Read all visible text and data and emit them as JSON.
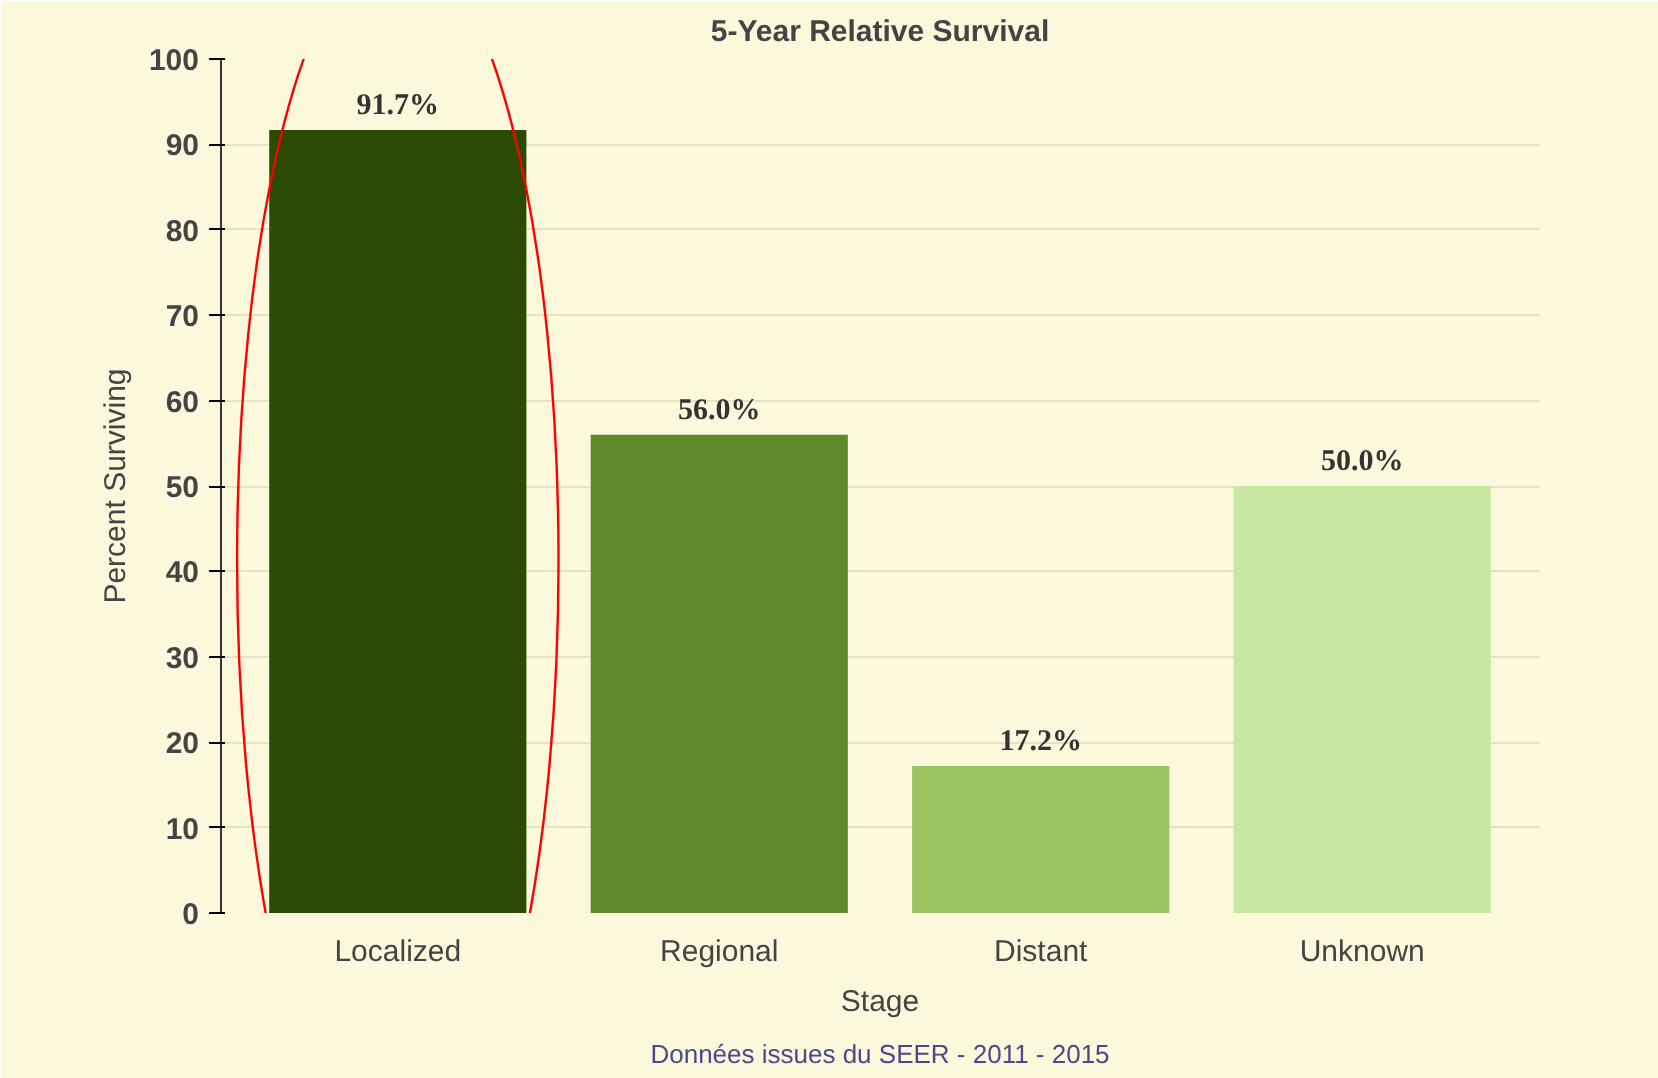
{
  "chart_data": {
    "type": "bar",
    "title": "5-Year Relative Survival",
    "xlabel": "Stage",
    "ylabel": "Percent Surviving",
    "categories": [
      "Localized",
      "Regional",
      "Distant",
      "Unknown"
    ],
    "values": [
      91.7,
      56.0,
      17.2,
      50.0
    ],
    "colors": [
      "#2b4a06",
      "#5f8a2c",
      "#9bc35f",
      "#c8e8a2"
    ],
    "value_labels": [
      "91.7%",
      "56.0%",
      "17.2%",
      "50.0%"
    ],
    "ylim": [
      0,
      100
    ],
    "yticks": [
      0,
      10,
      20,
      30,
      40,
      50,
      60,
      70,
      80,
      90,
      100
    ],
    "grid": "y",
    "annotations": [
      "Données issues du SEER - 2011 - 2015"
    ]
  }
}
